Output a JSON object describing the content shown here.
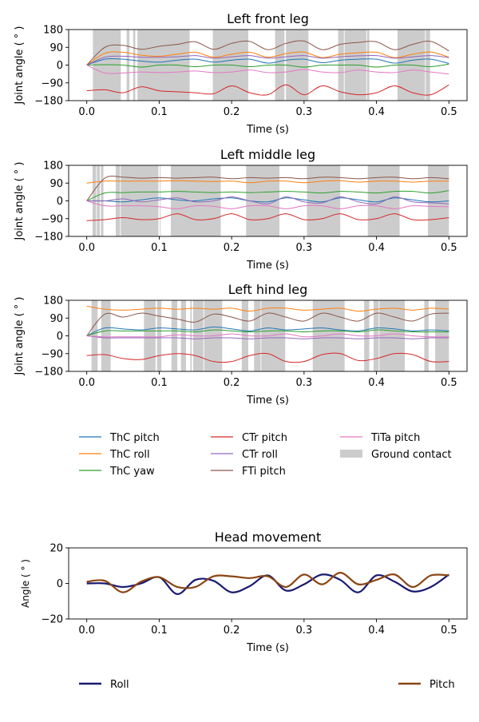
{
  "chart_data": [
    {
      "type": "line",
      "title": "Left front leg",
      "xlabel": "Time (s)",
      "ylabel": "Joint angle ( ° )",
      "xlim": [
        -0.025,
        0.525
      ],
      "ylim": [
        -180,
        180
      ],
      "xticks": [
        0.0,
        0.1,
        0.2,
        0.3,
        0.4,
        0.5
      ],
      "xtick_labels": [
        "0.0",
        "0.1",
        "0.2",
        "0.3",
        "0.4",
        "0.5"
      ],
      "yticks": [
        180,
        90,
        0,
        -90,
        -180
      ],
      "ytick_labels": [
        "180",
        "90",
        "0",
        "−90",
        "−180"
      ],
      "x_step": 0.025,
      "ground_contact": [
        [
          0.0085,
          0.047
        ],
        [
          0.055,
          0.059
        ],
        [
          0.064,
          0.067
        ],
        [
          0.07,
          0.142
        ],
        [
          0.174,
          0.223
        ],
        [
          0.26,
          0.273
        ],
        [
          0.275,
          0.306
        ],
        [
          0.347,
          0.355
        ],
        [
          0.356,
          0.386
        ],
        [
          0.387,
          0.39
        ],
        [
          0.429,
          0.467
        ],
        [
          0.468,
          0.474
        ]
      ],
      "series": [
        {
          "name": "ThC pitch",
          "values": [
            0,
            30,
            30,
            20,
            15,
            25,
            30,
            15,
            25,
            30,
            10,
            25,
            30,
            12,
            25,
            30,
            30,
            10,
            25,
            30,
            8
          ]
        },
        {
          "name": "ThC roll",
          "values": [
            0,
            60,
            65,
            50,
            45,
            55,
            65,
            40,
            55,
            65,
            40,
            58,
            66,
            38,
            55,
            62,
            65,
            38,
            55,
            66,
            40
          ]
        },
        {
          "name": "ThC yaw",
          "values": [
            0,
            2,
            0,
            -10,
            0,
            0,
            -8,
            0,
            0,
            -8,
            0,
            0,
            -10,
            0,
            0,
            0,
            -10,
            0,
            0,
            -8,
            5
          ]
        },
        {
          "name": "CTr pitch",
          "values": [
            -130,
            -125,
            -140,
            -110,
            -130,
            -135,
            -140,
            -145,
            -105,
            -140,
            -150,
            -100,
            -150,
            -105,
            -135,
            -150,
            -140,
            -105,
            -140,
            -150,
            -100
          ]
        },
        {
          "name": "CTr roll",
          "values": [
            0,
            40,
            45,
            40,
            40,
            42,
            48,
            35,
            42,
            48,
            35,
            42,
            48,
            35,
            42,
            47,
            48,
            35,
            42,
            48,
            38
          ]
        },
        {
          "name": "FTi pitch",
          "values": [
            0,
            90,
            100,
            80,
            95,
            105,
            118,
            80,
            110,
            120,
            78,
            110,
            122,
            78,
            105,
            115,
            118,
            78,
            105,
            120,
            72
          ]
        },
        {
          "name": "TiTa pitch",
          "values": [
            0,
            -40,
            -40,
            -35,
            -38,
            -35,
            -30,
            -38,
            -35,
            -25,
            -38,
            -35,
            -22,
            -35,
            -38,
            -25,
            -35,
            -38,
            -25,
            -35,
            -45
          ]
        }
      ]
    },
    {
      "type": "line",
      "title": "Left middle leg",
      "xlabel": "Time (s)",
      "ylabel": "Joint angle ( ° )",
      "xlim": [
        -0.025,
        0.525
      ],
      "ylim": [
        -180,
        180
      ],
      "xticks": [
        0.0,
        0.1,
        0.2,
        0.3,
        0.4,
        0.5
      ],
      "xtick_labels": [
        "0.0",
        "0.1",
        "0.2",
        "0.3",
        "0.4",
        "0.5"
      ],
      "yticks": [
        180,
        90,
        0,
        -90,
        -180
      ],
      "ytick_labels": [
        "180",
        "90",
        "0",
        "−90",
        "−180"
      ],
      "x_step": 0.025,
      "ground_contact": [
        [
          0.008,
          0.013
        ],
        [
          0.014,
          0.018
        ],
        [
          0.0195,
          0.023
        ],
        [
          0.04,
          0.046
        ],
        [
          0.047,
          0.099
        ],
        [
          0.101,
          0.102
        ],
        [
          0.116,
          0.185
        ],
        [
          0.22,
          0.266
        ],
        [
          0.304,
          0.35
        ],
        [
          0.388,
          0.432
        ],
        [
          0.471,
          0.5
        ]
      ],
      "series": [
        {
          "name": "ThC pitch",
          "values": [
            0,
            0,
            -5,
            5,
            15,
            5,
            0,
            10,
            15,
            0,
            -5,
            15,
            5,
            -5,
            15,
            5,
            -5,
            15,
            5,
            -5,
            0
          ]
        },
        {
          "name": "ThC roll",
          "values": [
            90,
            100,
            100,
            100,
            100,
            102,
            100,
            98,
            100,
            92,
            100,
            100,
            92,
            100,
            102,
            95,
            100,
            100,
            95,
            100,
            100
          ]
        },
        {
          "name": "ThC yaw",
          "values": [
            0,
            40,
            42,
            45,
            45,
            48,
            45,
            42,
            45,
            42,
            45,
            48,
            45,
            40,
            48,
            45,
            40,
            48,
            48,
            40,
            52
          ]
        },
        {
          "name": "CTr pitch",
          "values": [
            -100,
            -95,
            -85,
            -95,
            -90,
            -65,
            -95,
            -90,
            -65,
            -95,
            -90,
            -65,
            -95,
            -90,
            -65,
            -95,
            -90,
            -65,
            -95,
            -95,
            -85
          ]
        },
        {
          "name": "CTr roll",
          "values": [
            0,
            0,
            10,
            -5,
            5,
            15,
            -5,
            0,
            20,
            0,
            -15,
            20,
            -5,
            -10,
            20,
            -5,
            -15,
            20,
            -5,
            -10,
            -15
          ]
        },
        {
          "name": "FTi pitch",
          "values": [
            0,
            115,
            120,
            115,
            118,
            115,
            118,
            120,
            112,
            118,
            115,
            118,
            112,
            120,
            118,
            112,
            118,
            120,
            112,
            118,
            112
          ]
        },
        {
          "name": "TiTa pitch",
          "values": [
            0,
            -25,
            -25,
            -25,
            -30,
            -40,
            -25,
            -28,
            -40,
            -25,
            -25,
            -40,
            -25,
            -25,
            -40,
            -25,
            -25,
            -40,
            -25,
            -28,
            -30
          ]
        }
      ]
    },
    {
      "type": "line",
      "title": "Left hind leg",
      "xlabel": "Time (s)",
      "ylabel": "Joint angle ( ° )",
      "xlim": [
        -0.025,
        0.525
      ],
      "ylim": [
        -180,
        180
      ],
      "xticks": [
        0.0,
        0.1,
        0.2,
        0.3,
        0.4,
        0.5
      ],
      "xtick_labels": [
        "0.0",
        "0.1",
        "0.2",
        "0.3",
        "0.4",
        "0.5"
      ],
      "yticks": [
        180,
        90,
        0,
        -90,
        -180
      ],
      "ytick_labels": [
        "180",
        "90",
        "0",
        "−90",
        "−180"
      ],
      "x_step": 0.025,
      "ground_contact": [
        [
          0.0066,
          0.015
        ],
        [
          0.02,
          0.033
        ],
        [
          0.079,
          0.095
        ],
        [
          0.097,
          0.103
        ],
        [
          0.117,
          0.125
        ],
        [
          0.13,
          0.137
        ],
        [
          0.143,
          0.145
        ],
        [
          0.147,
          0.161
        ],
        [
          0.162,
          0.187
        ],
        [
          0.214,
          0.223
        ],
        [
          0.231,
          0.24
        ],
        [
          0.241,
          0.274
        ],
        [
          0.312,
          0.356
        ],
        [
          0.383,
          0.39
        ],
        [
          0.396,
          0.403
        ],
        [
          0.404,
          0.439
        ],
        [
          0.466,
          0.472
        ],
        [
          0.481,
          0.5
        ]
      ],
      "series": [
        {
          "name": "ThC pitch",
          "values": [
            0,
            40,
            35,
            30,
            40,
            35,
            30,
            45,
            35,
            25,
            40,
            30,
            35,
            40,
            30,
            25,
            40,
            35,
            25,
            30,
            25
          ]
        },
        {
          "name": "ThC roll",
          "values": [
            150,
            135,
            130,
            135,
            140,
            135,
            140,
            135,
            140,
            125,
            140,
            140,
            130,
            135,
            140,
            125,
            135,
            140,
            130,
            140,
            135
          ]
        },
        {
          "name": "ThC yaw",
          "values": [
            0,
            25,
            25,
            25,
            25,
            25,
            20,
            30,
            25,
            20,
            25,
            25,
            20,
            25,
            25,
            20,
            30,
            25,
            20,
            20,
            20
          ]
        },
        {
          "name": "CTr pitch",
          "values": [
            -100,
            -95,
            -115,
            -120,
            -100,
            -90,
            -100,
            -130,
            -130,
            -100,
            -90,
            -130,
            -130,
            -95,
            -90,
            -125,
            -115,
            -90,
            -95,
            -130,
            -130
          ]
        },
        {
          "name": "CTr roll",
          "values": [
            0,
            -10,
            -10,
            -10,
            -10,
            -10,
            -15,
            -10,
            -10,
            -15,
            -10,
            -10,
            -15,
            -10,
            -10,
            -15,
            -10,
            -10,
            -15,
            -10,
            -10
          ]
        },
        {
          "name": "FTi pitch",
          "values": [
            0,
            110,
            95,
            115,
            100,
            85,
            70,
            110,
            95,
            75,
            115,
            95,
            75,
            115,
            95,
            75,
            115,
            95,
            75,
            110,
            115
          ]
        },
        {
          "name": "TiTa pitch",
          "values": [
            0,
            -5,
            -5,
            -5,
            -5,
            5,
            0,
            0,
            10,
            0,
            0,
            10,
            -5,
            0,
            10,
            0,
            0,
            10,
            0,
            -5,
            -5
          ]
        }
      ]
    },
    {
      "type": "line",
      "title": "Head movement",
      "xlabel": "Time (s)",
      "ylabel": "Angle ( ° )",
      "xlim": [
        -0.025,
        0.525
      ],
      "ylim": [
        -20,
        20
      ],
      "xticks": [
        0.0,
        0.1,
        0.2,
        0.3,
        0.4,
        0.5
      ],
      "xtick_labels": [
        "0.0",
        "0.1",
        "0.2",
        "0.3",
        "0.4",
        "0.5"
      ],
      "yticks": [
        20,
        0,
        -20
      ],
      "ytick_labels": [
        "20",
        "0",
        "−20"
      ],
      "x_step": 0.025,
      "series": [
        {
          "name": "Roll",
          "values": [
            0,
            0,
            -2,
            0,
            3.5,
            -6,
            2,
            1.5,
            -5,
            -1.5,
            4.5,
            -4,
            -0.5,
            5,
            2,
            -5,
            4.5,
            1,
            -4.5,
            -2,
            5
          ]
        },
        {
          "name": "Pitch",
          "values": [
            1,
            1.5,
            -5,
            1,
            3.5,
            -2,
            -2,
            4,
            4,
            3,
            4,
            -2,
            5,
            -0.5,
            6,
            -0.5,
            2,
            5,
            -2,
            4.5,
            4.5
          ]
        }
      ]
    }
  ],
  "legend_legs": {
    "entries": [
      "ThC pitch",
      "ThC roll",
      "ThC yaw",
      "CTr pitch",
      "CTr roll",
      "FTi pitch",
      "TiTa pitch",
      "Ground contact"
    ],
    "placement": "below"
  },
  "legend_head": {
    "entries": [
      "Roll",
      "Pitch"
    ],
    "placement": "below"
  },
  "colors": {
    "ThC pitch": "#1f77b4",
    "ThC roll": "#ff7f0e",
    "ThC yaw": "#2ca02c",
    "CTr pitch": "#d62728",
    "CTr roll": "#9467bd",
    "FTi pitch": "#8c564b",
    "TiTa pitch": "#e377c2",
    "Ground contact": "#cccccc",
    "Roll": "#191970",
    "Pitch": "#8b4513"
  }
}
